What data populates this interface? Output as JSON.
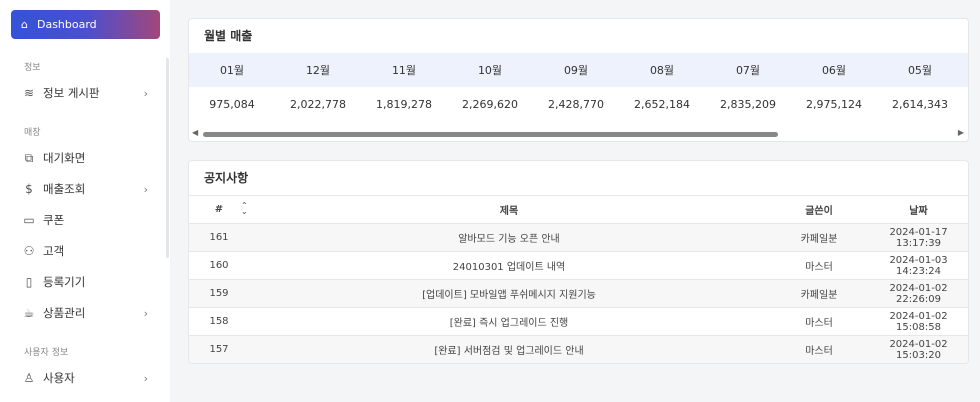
{
  "sidebar": {
    "dashboard": "Dashboard",
    "sections": [
      {
        "title": "정보",
        "items": [
          {
            "label": "정보 게시판",
            "icon": "layers-icon",
            "chevron": true
          }
        ]
      },
      {
        "title": "매장",
        "items": [
          {
            "label": "대기화면",
            "icon": "copy-icon",
            "chevron": false
          },
          {
            "label": "매출조회",
            "icon": "dollar-icon",
            "chevron": true
          },
          {
            "label": "쿠폰",
            "icon": "ticket-icon",
            "chevron": false
          },
          {
            "label": "고객",
            "icon": "users-icon",
            "chevron": false
          },
          {
            "label": "등록기기",
            "icon": "phone-icon",
            "chevron": false
          },
          {
            "label": "상품관리",
            "icon": "cup-icon",
            "chevron": true
          }
        ]
      },
      {
        "title": "사용자 정보",
        "items": [
          {
            "label": "사용자",
            "icon": "user-icon",
            "chevron": true
          }
        ]
      }
    ]
  },
  "sales": {
    "title": "월별 매출",
    "months": [
      "01월",
      "12월",
      "11월",
      "10월",
      "09월",
      "08월",
      "07월",
      "06월",
      "05월"
    ],
    "values": [
      "975,084",
      "2,022,778",
      "1,819,278",
      "2,269,620",
      "2,428,770",
      "2,652,184",
      "2,835,209",
      "2,975,124",
      "2,614,343"
    ]
  },
  "notice": {
    "title": "공지사항",
    "headers": {
      "num": "#",
      "title": "제목",
      "author": "글쓴이",
      "date": "날짜"
    },
    "rows": [
      {
        "num": "161",
        "title": "알바모드 기능 오픈 안내",
        "author": "카페일분",
        "date": "2024-01-17 13:17:39"
      },
      {
        "num": "160",
        "title": "24010301 업데이트 내역",
        "author": "마스터",
        "date": "2024-01-03 14:23:24"
      },
      {
        "num": "159",
        "title": "[업데이트] 모바일앱 푸쉬메시지 지원기능",
        "author": "카페일분",
        "date": "2024-01-02 22:26:09"
      },
      {
        "num": "158",
        "title": "[완료] 즉시 업그레이드 진행",
        "author": "마스터",
        "date": "2024-01-02 15:08:58"
      },
      {
        "num": "157",
        "title": "[완료] 서버점검 및 업그레이드 안내",
        "author": "마스터",
        "date": "2024-01-02 15:03:20"
      }
    ]
  }
}
